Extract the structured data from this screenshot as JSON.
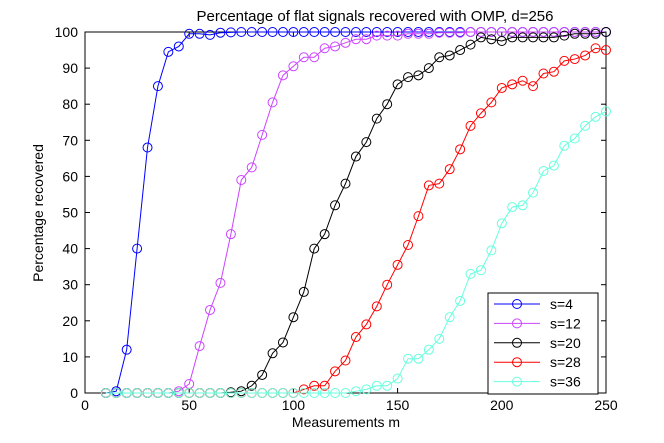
{
  "chart_data": {
    "type": "line",
    "title": "Percentage of flat signals recovered with OMP, d=256",
    "xlabel": "Measurements m",
    "ylabel": "Percentage recovered",
    "xlim": [
      0,
      250
    ],
    "ylim": [
      0,
      100
    ],
    "xticks": [
      0,
      50,
      100,
      150,
      200,
      250
    ],
    "yticks": [
      0,
      10,
      20,
      30,
      40,
      50,
      60,
      70,
      80,
      90,
      100
    ],
    "grid": false,
    "legend_position": "bottom-right",
    "series": [
      {
        "name": "s=4",
        "color": "#0000ff",
        "x": [
          10,
          15,
          20,
          25,
          30,
          35,
          40,
          45,
          50,
          55,
          60,
          65,
          70,
          75,
          80,
          85,
          90,
          95,
          100,
          105,
          110,
          115,
          120,
          125,
          130,
          135,
          140,
          145,
          150,
          155,
          160,
          165,
          170,
          175,
          180,
          185,
          190,
          195,
          200,
          205,
          210,
          215,
          220,
          225,
          230,
          235,
          240,
          245,
          250
        ],
        "y": [
          0,
          0.5,
          12,
          40,
          68,
          85,
          94.5,
          96,
          99.5,
          99.5,
          99.2,
          99.8,
          99.9,
          100,
          100,
          100,
          100,
          100,
          100,
          100,
          100,
          100,
          100,
          100,
          100,
          100,
          100,
          100,
          100,
          100,
          100,
          100,
          100,
          100,
          100,
          100,
          100,
          100,
          100,
          100,
          100,
          100,
          100,
          100,
          100,
          100,
          100,
          100,
          100
        ]
      },
      {
        "name": "s=12",
        "color": "#cc44ff",
        "x": [
          10,
          15,
          20,
          25,
          30,
          35,
          40,
          45,
          50,
          55,
          60,
          65,
          70,
          75,
          80,
          85,
          90,
          95,
          100,
          105,
          110,
          115,
          120,
          125,
          130,
          135,
          140,
          145,
          150,
          155,
          160,
          165,
          170,
          175,
          180,
          185,
          190,
          195,
          200,
          205,
          210,
          215,
          220,
          225,
          230,
          235,
          240,
          245,
          250
        ],
        "y": [
          0,
          0,
          0,
          0,
          0,
          0,
          0,
          0.5,
          2.5,
          13,
          23,
          30.5,
          44,
          59,
          62.5,
          71.5,
          80.5,
          88,
          90.5,
          93,
          93,
          95.5,
          96,
          97,
          98,
          98,
          99,
          99,
          99,
          99.5,
          99.5,
          99.5,
          99.8,
          99.8,
          99.8,
          100,
          100,
          100,
          100,
          100,
          100,
          100,
          100,
          100,
          100,
          100,
          100,
          100,
          100
        ]
      },
      {
        "name": "s=20",
        "color": "#000000",
        "x": [
          10,
          15,
          20,
          25,
          30,
          35,
          40,
          45,
          50,
          55,
          60,
          65,
          70,
          75,
          80,
          85,
          90,
          95,
          100,
          105,
          110,
          115,
          120,
          125,
          130,
          135,
          140,
          145,
          150,
          155,
          160,
          165,
          170,
          175,
          180,
          185,
          190,
          195,
          200,
          205,
          210,
          215,
          220,
          225,
          230,
          235,
          240,
          245,
          250
        ],
        "y": [
          0,
          0,
          0,
          0,
          0,
          0,
          0,
          0,
          0,
          0,
          0,
          0,
          0.2,
          0.5,
          2,
          5,
          11,
          14,
          21,
          28,
          40,
          44,
          52,
          58,
          65.5,
          69.5,
          76,
          80,
          85.5,
          87.5,
          88,
          90,
          93,
          93.5,
          95,
          96.5,
          98.5,
          98,
          97.5,
          98.5,
          98.5,
          98.5,
          98.5,
          98.5,
          99,
          99.5,
          99.5,
          99.5,
          100
        ]
      },
      {
        "name": "s=28",
        "color": "#ff0000",
        "x": [
          10,
          15,
          20,
          25,
          30,
          35,
          40,
          45,
          50,
          55,
          60,
          65,
          70,
          75,
          80,
          85,
          90,
          95,
          100,
          105,
          110,
          115,
          120,
          125,
          130,
          135,
          140,
          145,
          150,
          155,
          160,
          165,
          170,
          175,
          180,
          185,
          190,
          195,
          200,
          205,
          210,
          215,
          220,
          225,
          230,
          235,
          240,
          245,
          250
        ],
        "y": [
          0,
          0,
          0,
          0,
          0,
          0,
          0,
          0,
          0,
          0,
          0,
          0,
          0,
          0,
          0,
          0,
          0,
          0,
          0,
          1,
          2,
          2,
          6,
          9,
          15.5,
          19,
          24,
          30,
          35.5,
          41,
          49,
          57.5,
          58,
          62,
          67.5,
          74,
          77.5,
          80.5,
          84.5,
          85.5,
          86.5,
          85,
          88.5,
          89,
          92,
          92.5,
          93.5,
          95.5,
          95
        ]
      },
      {
        "name": "s=36",
        "color": "#66ffdd",
        "x": [
          10,
          15,
          20,
          25,
          30,
          35,
          40,
          45,
          50,
          55,
          60,
          65,
          70,
          75,
          80,
          85,
          90,
          95,
          100,
          105,
          110,
          115,
          120,
          125,
          130,
          135,
          140,
          145,
          150,
          155,
          160,
          165,
          170,
          175,
          180,
          185,
          190,
          195,
          200,
          205,
          210,
          215,
          220,
          225,
          230,
          235,
          240,
          245,
          250
        ],
        "y": [
          0,
          0,
          0,
          0,
          0,
          0,
          0,
          0,
          0,
          0,
          0,
          0,
          0,
          0,
          0,
          0,
          0,
          0,
          0,
          0,
          0,
          0,
          0,
          0,
          0.5,
          1,
          2,
          2,
          4,
          9.5,
          9.5,
          12,
          15,
          21,
          25.5,
          33,
          34,
          39.5,
          47,
          51.5,
          52,
          55.5,
          61.5,
          63,
          68.5,
          70.5,
          74,
          76.5,
          78
        ]
      }
    ]
  }
}
